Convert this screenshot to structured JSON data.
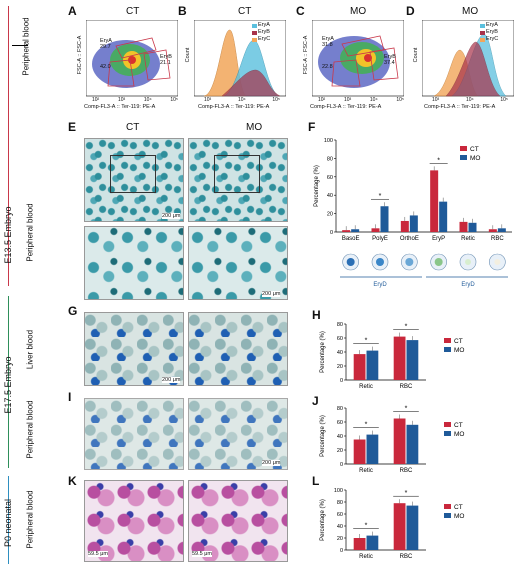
{
  "panels": {
    "A": {
      "letter": "A",
      "title": "CT",
      "xlabel": "Comp-FL3-A :: Ter-119: PE-A",
      "ylabel": "FSC-A :: FSC-A",
      "gates": [
        {
          "name": "EryA",
          "value": "29.7"
        },
        {
          "name": "EryB",
          "value": "21.1"
        },
        {
          "name": "EryC",
          "value": "42.0"
        }
      ]
    },
    "B": {
      "letter": "B",
      "title": "CT",
      "xlabel": "Comp-FL3-A :: Ter-119: PE-A",
      "ylabel": "Count"
    },
    "C": {
      "letter": "C",
      "title": "MO",
      "xlabel": "Comp-FL3-A :: Ter-119: PE-A",
      "ylabel": "FSC-A :: FSC-A",
      "gates": [
        {
          "name": "EryA",
          "value": "31.8"
        },
        {
          "name": "EryB",
          "value": "37.4"
        },
        {
          "name": "EryC",
          "value": "22.8"
        }
      ]
    },
    "D": {
      "letter": "D",
      "title": "MO",
      "xlabel": "Comp-FL3-A :: Ter-119: PE-A",
      "ylabel": "Count"
    },
    "E": {
      "letter": "E",
      "col1": "CT",
      "col2": "MO",
      "scale1": "200 μm",
      "scale2": "200 μm"
    },
    "F": {
      "letter": "F",
      "ylabel": "Percentage (%)",
      "eryd1": "EryD",
      "eryd2": "EryD"
    },
    "G": {
      "letter": "G",
      "scale": "200 μm"
    },
    "H": {
      "letter": "H",
      "ylabel": "Percentage (%)"
    },
    "I": {
      "letter": "I",
      "scale": "200 μm"
    },
    "J": {
      "letter": "J",
      "ylabel": "Percentage (%)"
    },
    "K": {
      "letter": "K",
      "scale": "59.5 μm"
    },
    "L": {
      "letter": "L",
      "ylabel": "Percentage (%)"
    }
  },
  "flow_ticks": [
    "10²",
    "10³",
    "10⁴",
    "10⁵"
  ],
  "hist_ticks": [
    "10³",
    "10⁴",
    "10⁵"
  ],
  "side_labels": {
    "e135": "E13.5 Embryo",
    "e175": "E17.5 Embryo",
    "p0": "P0 neonatal",
    "pb1": "Peripheral blood",
    "pb2": "Peripheral blood",
    "liver": "Liver blood",
    "pb3": "Peripheral blood",
    "pb4": "Peripheral blood"
  },
  "colors": {
    "EryA": "#5bc0de",
    "EryB": "#a8324a",
    "EryC": "#f2a65a",
    "CT": "#c9283c",
    "MO": "#1f5a99"
  },
  "chart_data": [
    {
      "panel": "F",
      "type": "bar",
      "categories": [
        "BasoE",
        "PolyE",
        "OrthoE",
        "EryP",
        "Retic",
        "RBC"
      ],
      "series": [
        {
          "name": "CT",
          "values": [
            2,
            4,
            12,
            67,
            11,
            3
          ]
        },
        {
          "name": "MO",
          "values": [
            3,
            28,
            18,
            33,
            10,
            4
          ]
        }
      ],
      "ylabel": "Percentage (%)",
      "ylim": [
        0,
        100
      ],
      "yticks": [
        "0",
        "20",
        "40",
        "60",
        "80",
        "100"
      ],
      "sig": [
        "*",
        "*"
      ]
    },
    {
      "panel": "H",
      "type": "bar",
      "categories": [
        "Retic",
        "RBC"
      ],
      "series": [
        {
          "name": "CT",
          "values": [
            37,
            62
          ]
        },
        {
          "name": "MO",
          "values": [
            42,
            57
          ]
        }
      ],
      "ylabel": "Percentage (%)",
      "ylim": [
        0,
        80
      ],
      "yticks": [
        "0",
        "20",
        "40",
        "60",
        "80"
      ],
      "sig": [
        "*",
        "*"
      ]
    },
    {
      "panel": "J",
      "type": "bar",
      "categories": [
        "Retic",
        "RBC"
      ],
      "series": [
        {
          "name": "CT",
          "values": [
            35,
            65
          ]
        },
        {
          "name": "MO",
          "values": [
            42,
            56
          ]
        }
      ],
      "ylabel": "Percentage (%)",
      "ylim": [
        0,
        80
      ],
      "yticks": [
        "0",
        "20",
        "40",
        "60",
        "80"
      ],
      "sig": [
        "*",
        "*"
      ]
    },
    {
      "panel": "L",
      "type": "bar",
      "categories": [
        "Retic",
        "RBC"
      ],
      "series": [
        {
          "name": "CT",
          "values": [
            20,
            78
          ]
        },
        {
          "name": "MO",
          "values": [
            24,
            74
          ]
        }
      ],
      "ylabel": "Percentage (%)",
      "ylim": [
        0,
        100
      ],
      "yticks": [
        "0",
        "20",
        "40",
        "60",
        "80",
        "100"
      ],
      "sig": [
        "*",
        "*"
      ]
    }
  ]
}
